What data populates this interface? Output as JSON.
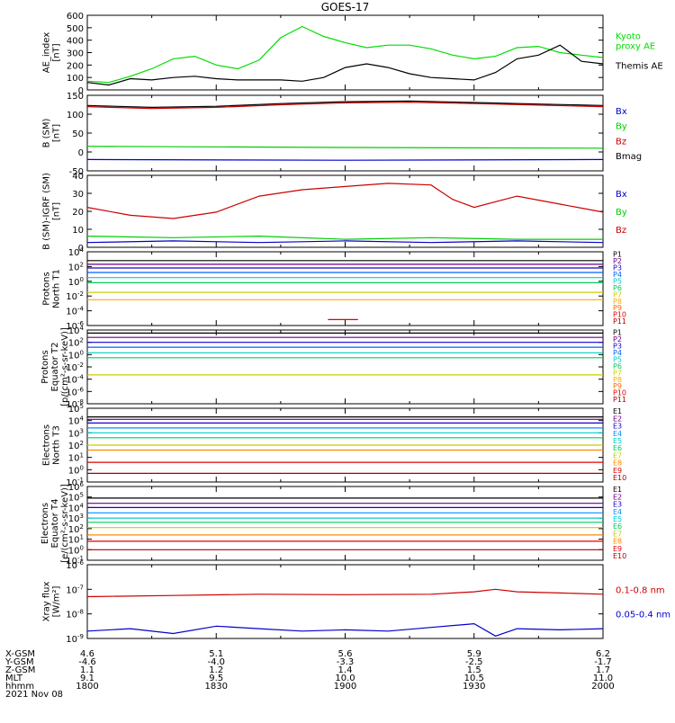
{
  "chart_data": {
    "title": "GOES-17",
    "date": "2021 Nov 08",
    "x_axis": {
      "row_labels": [
        "X-GSM",
        "Y-GSM",
        "Z-GSM",
        "MLT",
        "hhmm"
      ],
      "columns": [
        {
          "hhmm": "1800",
          "values": [
            "4.6",
            "-4.6",
            "1.1",
            "9.1",
            "1800"
          ]
        },
        {
          "hhmm": "1830",
          "values": [
            "5.1",
            "-4.0",
            "1.2",
            "9.5",
            "1830"
          ]
        },
        {
          "hhmm": "1900",
          "values": [
            "5.6",
            "-3.3",
            "1.4",
            "10.0",
            "1900"
          ]
        },
        {
          "hhmm": "1930",
          "values": [
            "5.9",
            "-2.5",
            "1.5",
            "10.5",
            "1930"
          ]
        },
        {
          "hhmm": "2000",
          "values": [
            "6.2",
            "-1.7",
            "1.7",
            "11.0",
            "2000"
          ]
        }
      ],
      "xlim": [
        "18:00",
        "20:00"
      ]
    },
    "panels": [
      {
        "type": "line",
        "ylabel": "AE_index\n[nT]",
        "ylim": [
          0,
          600
        ],
        "scale": "linear",
        "ticks": [
          "0",
          "100",
          "200",
          "300",
          "400",
          "500",
          "600"
        ],
        "legend": [
          {
            "label": "Kyoto\nproxy AE",
            "color": "#00dd00"
          },
          {
            "label": "Themis AE",
            "color": "#000000"
          }
        ],
        "series": [
          {
            "name": "Kyoto proxy AE",
            "color": "#00dd00",
            "x": [
              0,
              5,
              10,
              15,
              20,
              25,
              30,
              35,
              40,
              45,
              50,
              55,
              60,
              65,
              70,
              75,
              80,
              85,
              90,
              95,
              100,
              105,
              110,
              115,
              120
            ],
            "y": [
              70,
              60,
              110,
              170,
              250,
              270,
              200,
              170,
              240,
              420,
              510,
              430,
              380,
              340,
              360,
              360,
              330,
              280,
              250,
              270,
              340,
              350,
              300,
              280,
              260
            ]
          },
          {
            "name": "Themis AE",
            "color": "#000000",
            "x": [
              0,
              5,
              10,
              15,
              20,
              25,
              30,
              35,
              40,
              45,
              50,
              55,
              60,
              65,
              70,
              75,
              80,
              85,
              90,
              95,
              100,
              105,
              110,
              115,
              120
            ],
            "y": [
              60,
              40,
              90,
              80,
              100,
              110,
              90,
              80,
              80,
              80,
              70,
              100,
              180,
              210,
              180,
              130,
              100,
              90,
              80,
              140,
              250,
              280,
              360,
              230,
              210
            ]
          }
        ]
      },
      {
        "type": "line",
        "ylabel": "B (SM)\n[nT]",
        "ylim": [
          -50,
          150
        ],
        "scale": "linear",
        "ticks": [
          "-50",
          "0",
          "50",
          "100",
          "150"
        ],
        "legend": [
          {
            "label": "Bx",
            "color": "#0000cc"
          },
          {
            "label": "By",
            "color": "#00cc00"
          },
          {
            "label": "Bz",
            "color": "#cc0000"
          },
          {
            "label": "Bmag",
            "color": "#000000"
          }
        ],
        "series": [
          {
            "name": "Bx",
            "color": "#0000cc",
            "x": [
              0,
              60,
              120
            ],
            "y": [
              -20,
              -22,
              -20
            ]
          },
          {
            "name": "By",
            "color": "#00cc00",
            "x": [
              0,
              60,
              120
            ],
            "y": [
              15,
              12,
              10
            ]
          },
          {
            "name": "Bz",
            "color": "#cc0000",
            "x": [
              0,
              15,
              30,
              45,
              60,
              75,
              90,
              105,
              120
            ],
            "y": [
              120,
              115,
              118,
              125,
              130,
              132,
              128,
              124,
              120
            ]
          },
          {
            "name": "Bmag",
            "color": "#000000",
            "x": [
              0,
              15,
              30,
              45,
              60,
              75,
              90,
              105,
              120
            ],
            "y": [
              123,
              118,
              121,
              128,
              133,
              135,
              131,
              127,
              123
            ]
          }
        ]
      },
      {
        "type": "line",
        "ylabel": "B (SM)-IGRF (SM)\n[nT]",
        "ylim": [
          -5,
          40
        ],
        "scale": "linear",
        "ticks": [
          "0",
          "10",
          "20",
          "30",
          "40"
        ],
        "legend": [
          {
            "label": "Bx",
            "color": "#0000cc"
          },
          {
            "label": "By",
            "color": "#00cc00"
          },
          {
            "label": "Bz",
            "color": "#cc0000"
          }
        ],
        "series": [
          {
            "name": "Bx",
            "color": "#0000cc",
            "x": [
              0,
              20,
              40,
              60,
              80,
              100,
              120
            ],
            "y": [
              -2,
              -1,
              -2,
              -1,
              -2,
              -1,
              -2
            ]
          },
          {
            "name": "By",
            "color": "#00cc00",
            "x": [
              0,
              20,
              40,
              60,
              80,
              100,
              120
            ],
            "y": [
              2,
              1,
              2,
              0,
              1,
              0,
              0
            ]
          },
          {
            "name": "Bz",
            "color": "#cc0000",
            "x": [
              0,
              10,
              20,
              30,
              40,
              50,
              60,
              70,
              80,
              85,
              90,
              100,
              110,
              120
            ],
            "y": [
              20,
              15,
              13,
              17,
              27,
              31,
              33,
              35,
              34,
              25,
              20,
              27,
              22,
              17
            ]
          }
        ]
      },
      {
        "type": "line",
        "ylabel": "Protons\nNorth T1",
        "ylim": [
          -6,
          4
        ],
        "scale": "log10",
        "ticks": [
          "10^-6",
          "10^-4",
          "10^-2",
          "10^0",
          "10^2",
          "10^4"
        ],
        "legend": [
          {
            "label": "P1",
            "color": "#000000"
          },
          {
            "label": "P2",
            "color": "#6a0080"
          },
          {
            "label": "P3",
            "color": "#1a00cc"
          },
          {
            "label": "P4",
            "color": "#0060ff"
          },
          {
            "label": "P5",
            "color": "#00cccc"
          },
          {
            "label": "P6",
            "color": "#00cc60"
          },
          {
            "label": "P7",
            "color": "#cccc00"
          },
          {
            "label": "P8",
            "color": "#ffaa00"
          },
          {
            "label": "P9",
            "color": "#ff6600"
          },
          {
            "label": "P10",
            "color": "#dd0000"
          },
          {
            "label": "P11",
            "color": "#aa0000"
          }
        ],
        "series": [
          {
            "name": "P1",
            "color": "#000000",
            "level": 2.8
          },
          {
            "name": "P2",
            "color": "#6a0080",
            "level": 2.3
          },
          {
            "name": "P3",
            "color": "#1a00cc",
            "level": 1.8
          },
          {
            "name": "P4",
            "color": "#0060ff",
            "level": 1.2
          },
          {
            "name": "P5",
            "color": "#00cccc",
            "level": 0.5
          },
          {
            "name": "P6",
            "color": "#00cc60",
            "level": -0.2
          },
          {
            "name": "P7",
            "color": "#cccc00",
            "level": -1.5
          },
          {
            "name": "P8",
            "color": "#ffaa00",
            "level": -2.5
          },
          {
            "name": "P10",
            "color": "#dd0000",
            "level": -5.2,
            "x": [
              56,
              63
            ]
          }
        ]
      },
      {
        "type": "line",
        "ylabel": "Protons\nEquator T2\n[p/(cm²-s-sr-keV)]",
        "ylim": [
          -8,
          4
        ],
        "scale": "log10",
        "ticks": [
          "10^-8",
          "10^-6",
          "10^-4",
          "10^-2",
          "10^0",
          "10^2",
          "10^4"
        ],
        "legend": [
          {
            "label": "P1",
            "color": "#000000"
          },
          {
            "label": "P2",
            "color": "#6a0080"
          },
          {
            "label": "P3",
            "color": "#1a00cc"
          },
          {
            "label": "P4",
            "color": "#0060ff"
          },
          {
            "label": "P5",
            "color": "#00cccc"
          },
          {
            "label": "P6",
            "color": "#00cc60"
          },
          {
            "label": "P7",
            "color": "#cccc00"
          },
          {
            "label": "P8",
            "color": "#ffaa00"
          },
          {
            "label": "P9",
            "color": "#ff6600"
          },
          {
            "label": "P10",
            "color": "#dd0000"
          },
          {
            "label": "P11",
            "color": "#aa0000"
          }
        ],
        "series": [
          {
            "name": "P1",
            "color": "#000000",
            "level": 3.5
          },
          {
            "name": "P2",
            "color": "#6a0080",
            "level": 2.8
          },
          {
            "name": "P3",
            "color": "#1a00cc",
            "level": 2.0
          },
          {
            "name": "P4",
            "color": "#0060ff",
            "level": 1.2
          },
          {
            "name": "P5",
            "color": "#00cccc",
            "level": 0.3
          },
          {
            "name": "P6",
            "color": "#00cc60",
            "level": -0.5
          },
          {
            "name": "P7",
            "color": "#cccc00",
            "level": -3.3
          }
        ]
      },
      {
        "type": "line",
        "ylabel": "Electrons\nNorth T3",
        "ylim": [
          -1,
          5
        ],
        "scale": "log10",
        "ticks": [
          "10^-1",
          "10^0",
          "10^1",
          "10^2",
          "10^3",
          "10^4",
          "10^5"
        ],
        "legend": [
          {
            "label": "E1",
            "color": "#000000"
          },
          {
            "label": "E2",
            "color": "#6a0080"
          },
          {
            "label": "E3",
            "color": "#1a00cc"
          },
          {
            "label": "E4",
            "color": "#0090ff"
          },
          {
            "label": "E5",
            "color": "#00cccc"
          },
          {
            "label": "E6",
            "color": "#00cc60"
          },
          {
            "label": "E7",
            "color": "#cccc00"
          },
          {
            "label": "E8",
            "color": "#ff8800"
          },
          {
            "label": "E9",
            "color": "#dd0000"
          },
          {
            "label": "E10",
            "color": "#aa0000"
          }
        ],
        "series": [
          {
            "name": "E1",
            "color": "#000000",
            "level": 4.3
          },
          {
            "name": "E2",
            "color": "#6a0080",
            "level": 4.1
          },
          {
            "name": "E3",
            "color": "#1a00cc",
            "level": 3.8
          },
          {
            "name": "E4",
            "color": "#0090ff",
            "level": 3.4
          },
          {
            "name": "E5",
            "color": "#00cccc",
            "level": 3.0
          },
          {
            "name": "E6",
            "color": "#00cc60",
            "level": 2.6
          },
          {
            "name": "E7",
            "color": "#cccc00",
            "level": 2.0
          },
          {
            "name": "E8",
            "color": "#ff8800",
            "level": 1.6
          },
          {
            "name": "E9",
            "color": "#dd0000",
            "level": 0.6
          },
          {
            "name": "E10",
            "color": "#aa0000",
            "level": -0.3
          }
        ]
      },
      {
        "type": "line",
        "ylabel": "Electrons\nEquator T4\n[e/(cm²-s-sr-keV)]",
        "ylim": [
          -1,
          6
        ],
        "scale": "log10",
        "ticks": [
          "10^-1",
          "10^0",
          "10^1",
          "10^2",
          "10^3",
          "10^4",
          "10^5",
          "10^6"
        ],
        "legend": [
          {
            "label": "E1",
            "color": "#000000"
          },
          {
            "label": "E2",
            "color": "#6a0080"
          },
          {
            "label": "E3",
            "color": "#1a00cc"
          },
          {
            "label": "E4",
            "color": "#0090ff"
          },
          {
            "label": "E5",
            "color": "#00cccc"
          },
          {
            "label": "E6",
            "color": "#00cc60"
          },
          {
            "label": "E7",
            "color": "#cccc00"
          },
          {
            "label": "E8",
            "color": "#ff8800"
          },
          {
            "label": "E9",
            "color": "#dd0000"
          },
          {
            "label": "E10",
            "color": "#aa0000"
          }
        ],
        "series": [
          {
            "name": "E1",
            "color": "#000000",
            "level": 4.9
          },
          {
            "name": "E2",
            "color": "#6a0080",
            "level": 4.4
          },
          {
            "name": "E3",
            "color": "#1a00cc",
            "level": 4.0
          },
          {
            "name": "E4",
            "color": "#0090ff",
            "level": 3.5
          },
          {
            "name": "E5",
            "color": "#00cccc",
            "level": 3.0
          },
          {
            "name": "E6",
            "color": "#00cc60",
            "level": 2.6
          },
          {
            "name": "E7",
            "color": "#cccc00",
            "level": 2.1
          },
          {
            "name": "E8",
            "color": "#ff8800",
            "level": 1.4
          },
          {
            "name": "E9",
            "color": "#dd0000",
            "level": 0.8
          },
          {
            "name": "E10",
            "color": "#aa0000",
            "level": 0.0
          }
        ]
      },
      {
        "type": "line",
        "ylabel": "Xray flux\n[W/m²]",
        "ylim": [
          -9,
          -6
        ],
        "scale": "log10",
        "ticks": [
          "10^-9",
          "10^-8",
          "10^-7",
          "10^-6"
        ],
        "legend": [
          {
            "label": "0.1-0.8 nm",
            "color": "#cc0000"
          },
          {
            "label": "0.05-0.4 nm",
            "color": "#0000cc"
          }
        ],
        "series": [
          {
            "name": "0.1-0.8 nm",
            "color": "#cc0000",
            "x": [
              0,
              20,
              40,
              60,
              80,
              90,
              95,
              100,
              110,
              120
            ],
            "y": [
              -7.3,
              -7.25,
              -7.2,
              -7.22,
              -7.2,
              -7.1,
              -7.0,
              -7.1,
              -7.15,
              -7.2
            ]
          },
          {
            "name": "0.05-0.4 nm",
            "color": "#0000cc",
            "x": [
              0,
              10,
              20,
              30,
              40,
              50,
              60,
              70,
              80,
              90,
              95,
              100,
              110,
              120
            ],
            "y": [
              -8.7,
              -8.6,
              -8.8,
              -8.5,
              -8.6,
              -8.7,
              -8.65,
              -8.7,
              -8.55,
              -8.4,
              -8.9,
              -8.6,
              -8.65,
              -8.6
            ]
          }
        ]
      }
    ]
  }
}
